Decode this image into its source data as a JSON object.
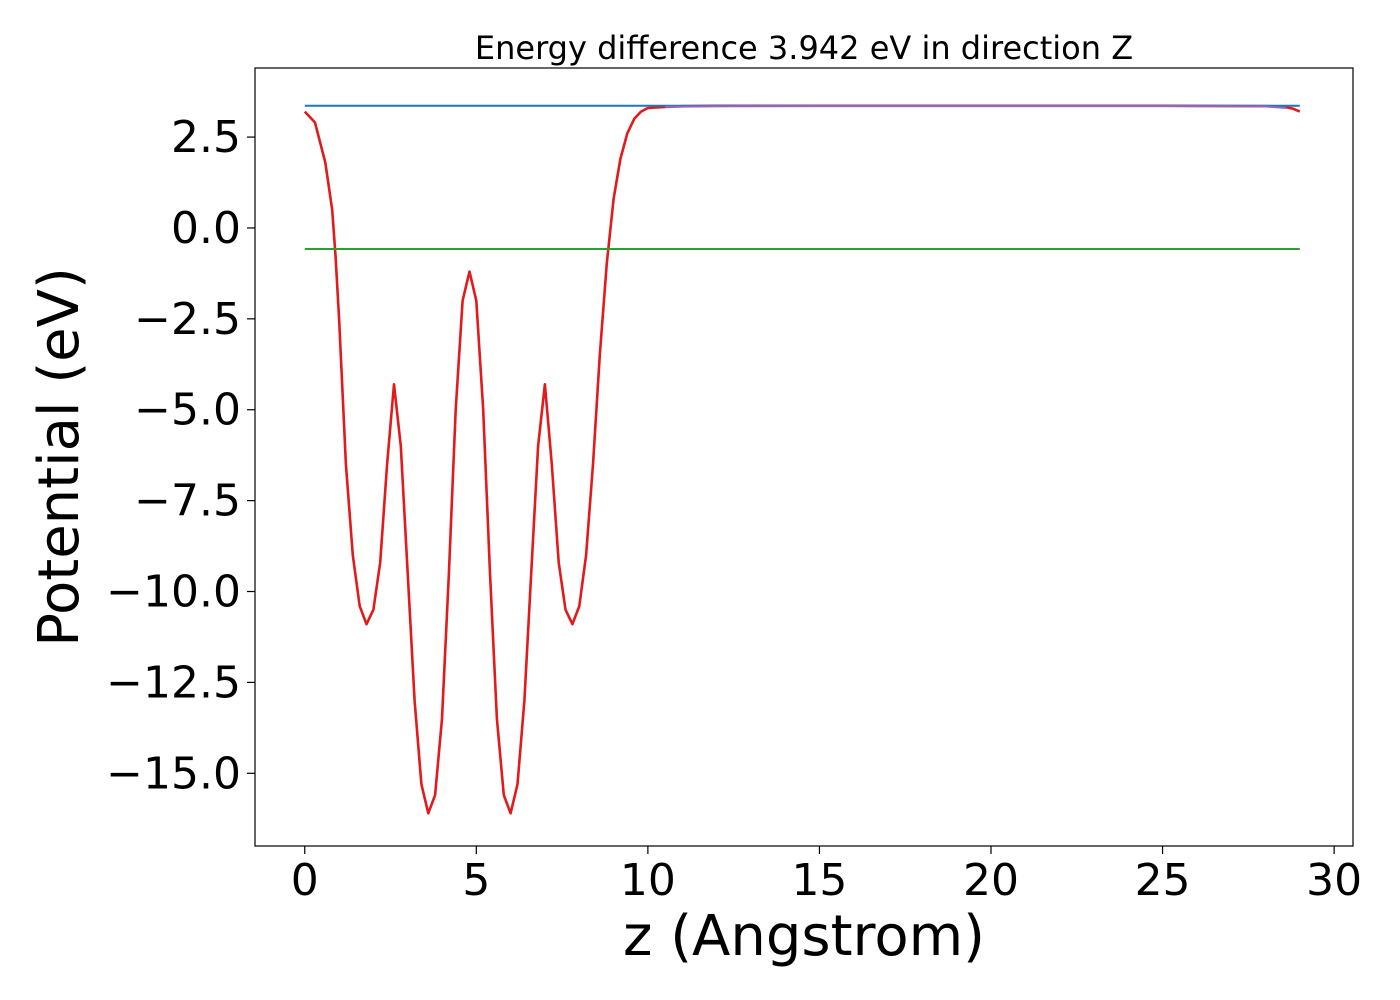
{
  "chart_data": {
    "type": "line",
    "title": "Energy difference 3.942 eV in direction Z",
    "xlabel": "z (Angstrom)",
    "ylabel": "Potential (eV)",
    "xlim": [
      -1.45,
      30.55
    ],
    "ylim": [
      -17.0,
      4.4
    ],
    "xticks": [
      0,
      5,
      10,
      15,
      20,
      25,
      30
    ],
    "xtick_labels": [
      "0",
      "5",
      "10",
      "15",
      "20",
      "25",
      "30"
    ],
    "yticks": [
      2.5,
      0.0,
      -2.5,
      -5.0,
      -7.5,
      -10.0,
      -12.5,
      -15.0
    ],
    "ytick_labels": [
      "2.5",
      "0.0",
      "−2.5",
      "−5.0",
      "−7.5",
      "−10.0",
      "−12.5",
      "−15.0"
    ],
    "grid": false,
    "colors": {
      "potential": "#e31a1c",
      "vacuum_level": "#1f77b4",
      "fermi_level": "#2ca02c",
      "macro_average": "#9467bd"
    },
    "series": [
      {
        "key": "potential",
        "color": "#e31a1c",
        "x": [
          0.0,
          0.3,
          0.6,
          0.8,
          0.9,
          1.0,
          1.1,
          1.2,
          1.4,
          1.6,
          1.8,
          2.0,
          2.2,
          2.4,
          2.6,
          2.8,
          3.0,
          3.2,
          3.4,
          3.6,
          3.8,
          4.0,
          4.2,
          4.4,
          4.6,
          4.8,
          5.0,
          5.2,
          5.4,
          5.6,
          5.8,
          6.0,
          6.2,
          6.4,
          6.6,
          6.8,
          7.0,
          7.2,
          7.4,
          7.6,
          7.8,
          8.0,
          8.2,
          8.4,
          8.6,
          8.8,
          9.0,
          9.2,
          9.4,
          9.6,
          9.8,
          10.0,
          10.5,
          11.0,
          12.0,
          15.0,
          20.0,
          25.0,
          28.0,
          28.5,
          28.8,
          29.0
        ],
        "y": [
          3.2,
          2.9,
          1.8,
          0.5,
          -0.8,
          -2.5,
          -4.5,
          -6.5,
          -9.0,
          -10.4,
          -10.9,
          -10.5,
          -9.2,
          -6.5,
          -4.3,
          -6.0,
          -9.5,
          -13.0,
          -15.3,
          -16.1,
          -15.6,
          -13.5,
          -9.5,
          -5.0,
          -2.0,
          -1.2,
          -2.0,
          -5.0,
          -9.5,
          -13.5,
          -15.6,
          -16.1,
          -15.3,
          -13.0,
          -9.5,
          -6.0,
          -4.3,
          -6.5,
          -9.2,
          -10.5,
          -10.9,
          -10.4,
          -9.0,
          -6.5,
          -3.5,
          -1.0,
          0.8,
          1.9,
          2.6,
          3.0,
          3.2,
          3.3,
          3.33,
          3.35,
          3.36,
          3.36,
          3.36,
          3.36,
          3.35,
          3.34,
          3.28,
          3.2
        ]
      },
      {
        "key": "vacuum_level",
        "color": "#1f77b4",
        "x": [
          0.0,
          29.0
        ],
        "y": [
          3.36,
          3.36
        ]
      },
      {
        "key": "fermi_level",
        "color": "#2ca02c",
        "x": [
          0.0,
          29.0
        ],
        "y": [
          -0.58,
          -0.58
        ]
      },
      {
        "key": "macro_average",
        "color": "#9467bd",
        "x": [
          10.5,
          12.0,
          15.0,
          20.0,
          25.0,
          28.0,
          28.6
        ],
        "y": [
          3.33,
          3.35,
          3.355,
          3.355,
          3.355,
          3.345,
          3.3
        ]
      }
    ]
  }
}
